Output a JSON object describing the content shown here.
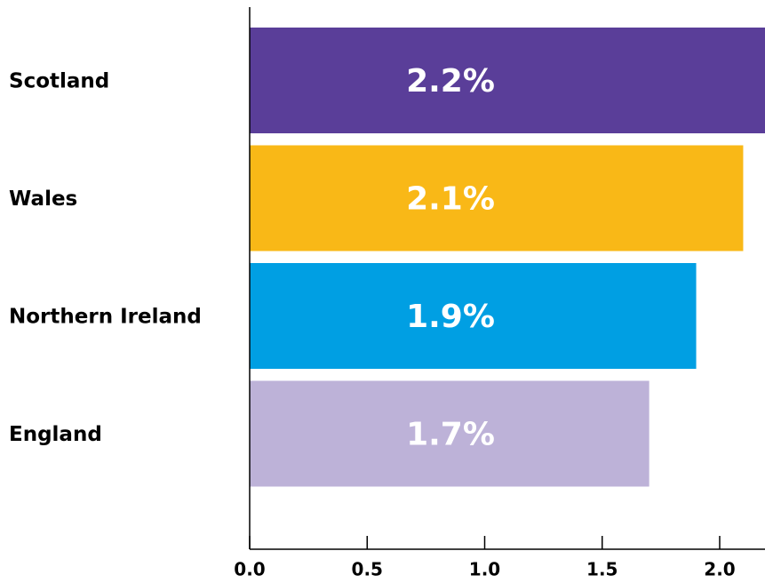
{
  "chart_data": {
    "type": "bar",
    "orientation": "horizontal",
    "categories": [
      "Scotland",
      "Wales",
      "Northern Ireland",
      "England"
    ],
    "values": [
      2.2,
      2.1,
      1.9,
      1.7
    ],
    "value_labels": [
      "2.2%",
      "2.1%",
      "1.9%",
      "1.7%"
    ],
    "colors": [
      "#5a3e99",
      "#f9b817",
      "#009fe3",
      "#bdb2d8"
    ],
    "xlim": [
      0,
      2.2
    ],
    "xticks": [
      {
        "value": 0,
        "label": "0.0"
      },
      0.5,
      {
        "value": 1,
        "label": "1.0"
      },
      1.5,
      {
        "value": 2,
        "label": "2.0"
      }
    ]
  }
}
